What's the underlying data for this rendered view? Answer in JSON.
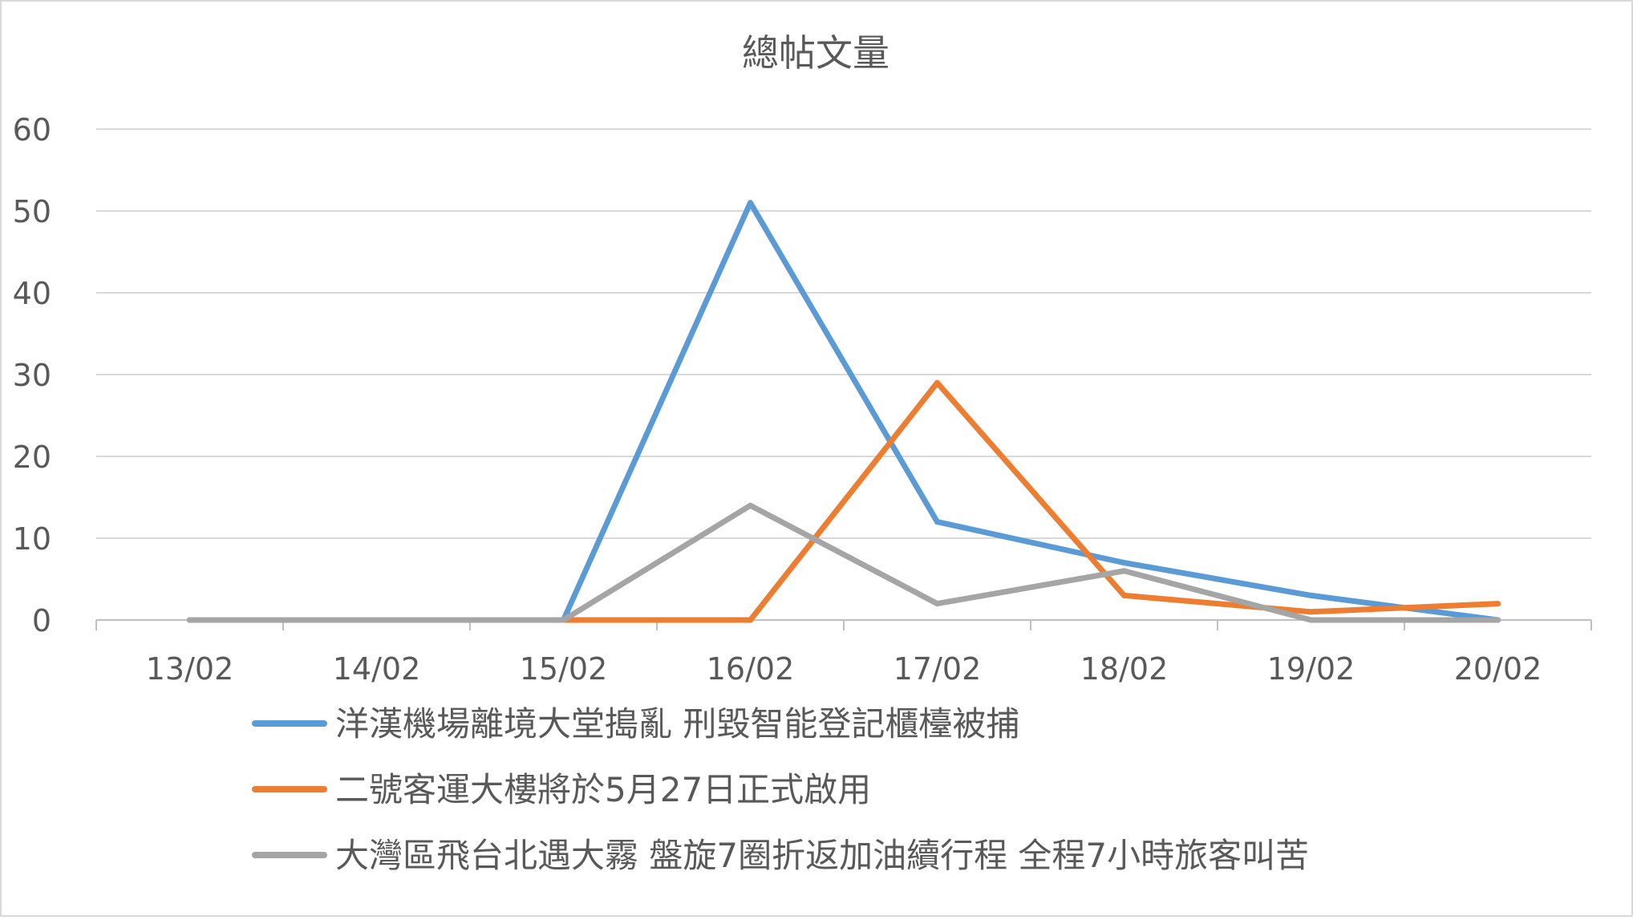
{
  "chart_data": {
    "type": "line",
    "title": "總帖文量",
    "xlabel": "",
    "ylabel": "",
    "categories": [
      "13/02",
      "14/02",
      "15/02",
      "16/02",
      "17/02",
      "18/02",
      "19/02",
      "20/02"
    ],
    "ylim": [
      0,
      60
    ],
    "yticks": [
      0,
      10,
      20,
      30,
      40,
      50,
      60
    ],
    "grid": true,
    "legend": "bottom",
    "series": [
      {
        "name": "洋漢機場離境大堂搗亂 刑毀智能登記櫃檯被捕",
        "color": "#5B9BD5",
        "values": [
          0,
          0,
          0,
          51,
          12,
          7,
          3,
          0
        ]
      },
      {
        "name": "二號客運大樓將於5月27日正式啟用",
        "color": "#ED7D31",
        "values": [
          0,
          0,
          0,
          0,
          29,
          3,
          1,
          2
        ]
      },
      {
        "name": "大灣區飛台北遇大霧 盤旋7圈折返加油續行程 全程7小時旅客叫苦",
        "color": "#A5A5A5",
        "values": [
          0,
          0,
          0,
          14,
          2,
          6,
          0,
          0
        ]
      }
    ]
  }
}
